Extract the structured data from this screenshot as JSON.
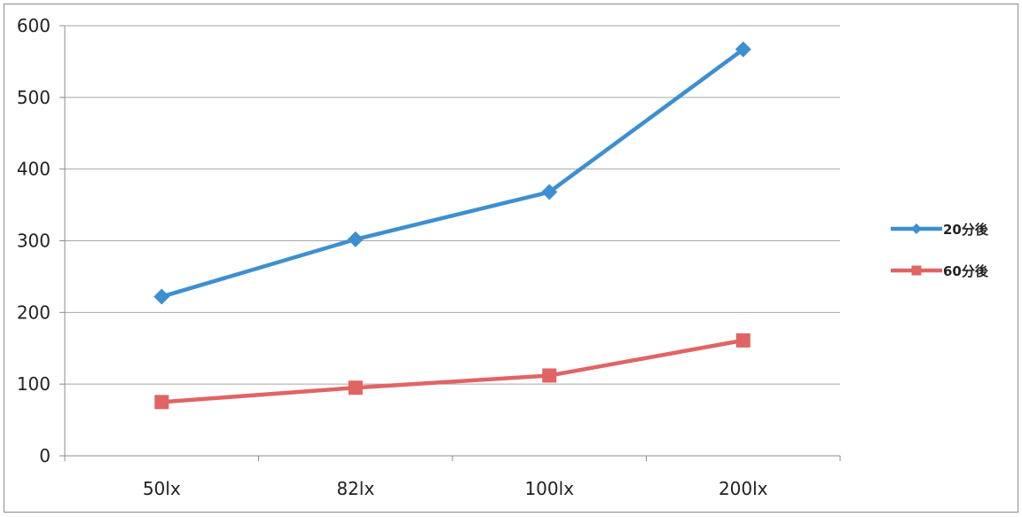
{
  "chart_data": {
    "type": "line",
    "title": "",
    "xlabel": "",
    "ylabel": "",
    "categories": [
      "50lx",
      "82lx",
      "100lx",
      "200lx"
    ],
    "ylim": [
      0,
      600
    ],
    "yticks": [
      "0",
      "100",
      "200",
      "300",
      "400",
      "500",
      "600"
    ],
    "grid": true,
    "legend_position": "right",
    "series": [
      {
        "name": "20分後",
        "values": [
          222,
          302,
          368,
          567
        ],
        "color": "#3d8fd1",
        "marker": "diamond"
      },
      {
        "name": "60分後",
        "values": [
          75,
          95,
          112,
          161
        ],
        "color": "#e06463",
        "marker": "square"
      }
    ]
  }
}
